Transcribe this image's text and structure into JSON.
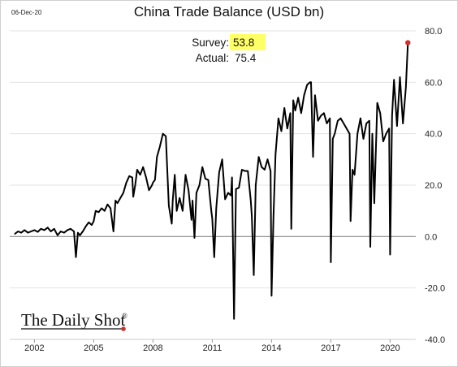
{
  "header": {
    "date": "06-Dec-20"
  },
  "chart_data": {
    "type": "line",
    "title": "China Trade Balance (USD bn)",
    "xlabel": "",
    "ylabel": "",
    "xlim": [
      2000.75,
      2021.3
    ],
    "ylim": [
      -40,
      80
    ],
    "y_axis_side": "right",
    "grid": "horizontal",
    "x_ticks": [
      2002,
      2005,
      2008,
      2011,
      2014,
      2017,
      2020
    ],
    "y_ticks": [
      -40,
      -20,
      0,
      20,
      40,
      60,
      80
    ],
    "y_tick_labels": [
      "-40.0",
      "-20.0",
      "0.0",
      "20.0",
      "40.0",
      "60.0",
      "80.0"
    ],
    "series_color": "#000000",
    "x": [
      2001.0,
      2001.17,
      2001.33,
      2001.5,
      2001.67,
      2001.83,
      2002.0,
      2002.17,
      2002.33,
      2002.5,
      2002.67,
      2002.83,
      2003.0,
      2003.17,
      2003.33,
      2003.5,
      2003.67,
      2003.83,
      2004.0,
      2004.1,
      2004.2,
      2004.3,
      2004.45,
      2004.6,
      2004.75,
      2004.9,
      2005.0,
      2005.1,
      2005.25,
      2005.4,
      2005.55,
      2005.7,
      2005.85,
      2006.0,
      2006.1,
      2006.2,
      2006.35,
      2006.5,
      2006.65,
      2006.8,
      2006.95,
      2007.0,
      2007.1,
      2007.2,
      2007.35,
      2007.5,
      2007.65,
      2007.8,
      2007.95,
      2008.0,
      2008.1,
      2008.2,
      2008.35,
      2008.5,
      2008.65,
      2008.8,
      2008.95,
      2009.0,
      2009.1,
      2009.2,
      2009.35,
      2009.5,
      2009.65,
      2009.8,
      2009.95,
      2010.0,
      2010.1,
      2010.2,
      2010.35,
      2010.5,
      2010.65,
      2010.8,
      2010.95,
      2011.0,
      2011.1,
      2011.2,
      2011.35,
      2011.5,
      2011.65,
      2011.8,
      2011.95,
      2012.0,
      2012.1,
      2012.2,
      2012.35,
      2012.5,
      2012.65,
      2012.8,
      2012.95,
      2013.0,
      2013.1,
      2013.2,
      2013.35,
      2013.5,
      2013.65,
      2013.8,
      2013.95,
      2014.0,
      2014.1,
      2014.2,
      2014.35,
      2014.5,
      2014.65,
      2014.8,
      2014.95,
      2015.0,
      2015.1,
      2015.2,
      2015.35,
      2015.5,
      2015.65,
      2015.8,
      2015.95,
      2016.0,
      2016.1,
      2016.2,
      2016.35,
      2016.5,
      2016.65,
      2016.8,
      2016.95,
      2017.0,
      2017.1,
      2017.2,
      2017.35,
      2017.5,
      2017.65,
      2017.8,
      2017.95,
      2018.0,
      2018.1,
      2018.2,
      2018.35,
      2018.5,
      2018.65,
      2018.8,
      2018.95,
      2019.0,
      2019.1,
      2019.2,
      2019.35,
      2019.5,
      2019.65,
      2019.8,
      2019.95,
      2020.0,
      2020.1,
      2020.2,
      2020.35,
      2020.5,
      2020.65,
      2020.8,
      2020.9
    ],
    "y": [
      1.0,
      2.0,
      1.5,
      2.5,
      1.5,
      2.0,
      2.5,
      1.8,
      3.0,
      2.5,
      3.5,
      2.0,
      3.0,
      0.5,
      2.0,
      1.5,
      2.5,
      3.0,
      2.0,
      -8.0,
      1.5,
      0.5,
      2.0,
      4.0,
      5.5,
      4.5,
      6.0,
      10.0,
      9.5,
      11.0,
      10.0,
      12.5,
      11.0,
      2.0,
      14.0,
      13.0,
      15.0,
      17.0,
      21.0,
      23.5,
      23.0,
      15.5,
      20.0,
      26.0,
      24.0,
      27.0,
      23.0,
      18.0,
      20.0,
      21.0,
      22.0,
      31.0,
      35.0,
      40.0,
      39.0,
      12.0,
      5.0,
      14.0,
      24.0,
      10.0,
      15.0,
      10.0,
      24.0,
      18.0,
      6.5,
      14.0,
      -0.5,
      17.0,
      20.0,
      27.0,
      22.5,
      22.0,
      10.0,
      7.0,
      -8.0,
      11.0,
      25.0,
      30.0,
      14.5,
      17.0,
      16.0,
      23.0,
      -32.0,
      18.5,
      19.0,
      26.0,
      25.5,
      25.5,
      14.0,
      8.0,
      -15.0,
      20.0,
      31.0,
      27.0,
      26.0,
      30.0,
      25.5,
      -23.0,
      8.0,
      32.0,
      46.0,
      41.0,
      50.0,
      42.0,
      48.0,
      3.0,
      53.0,
      49.0,
      54.0,
      48.0,
      55.0,
      59.0,
      60.0,
      60.0,
      31.0,
      55.0,
      45.0,
      47.0,
      48.0,
      44.0,
      46.0,
      -10.0,
      38.0,
      40.0,
      45.0,
      46.0,
      44.0,
      42.0,
      40.0,
      6.0,
      26.0,
      24.0,
      40.0,
      46.0,
      38.0,
      44.0,
      45.0,
      -4.0,
      40.0,
      13.0,
      52.0,
      48.0,
      37.0,
      40.0,
      42.0,
      -7.0,
      47.0,
      61.0,
      43.0,
      62.0,
      44.0,
      58.0,
      75.4
    ],
    "highlight_point": {
      "x": 2020.9,
      "y": 75.4,
      "color": "#d32f2f"
    },
    "annotation": {
      "survey_label": "Survey:",
      "survey_value": "53.8",
      "actual_label": "Actual:",
      "actual_value": "75.4",
      "highlight_color": "#ffff66"
    }
  },
  "branding": {
    "name": "The Daily Shot",
    "registered_mark": "®",
    "dot_color": "#d32f2f"
  }
}
